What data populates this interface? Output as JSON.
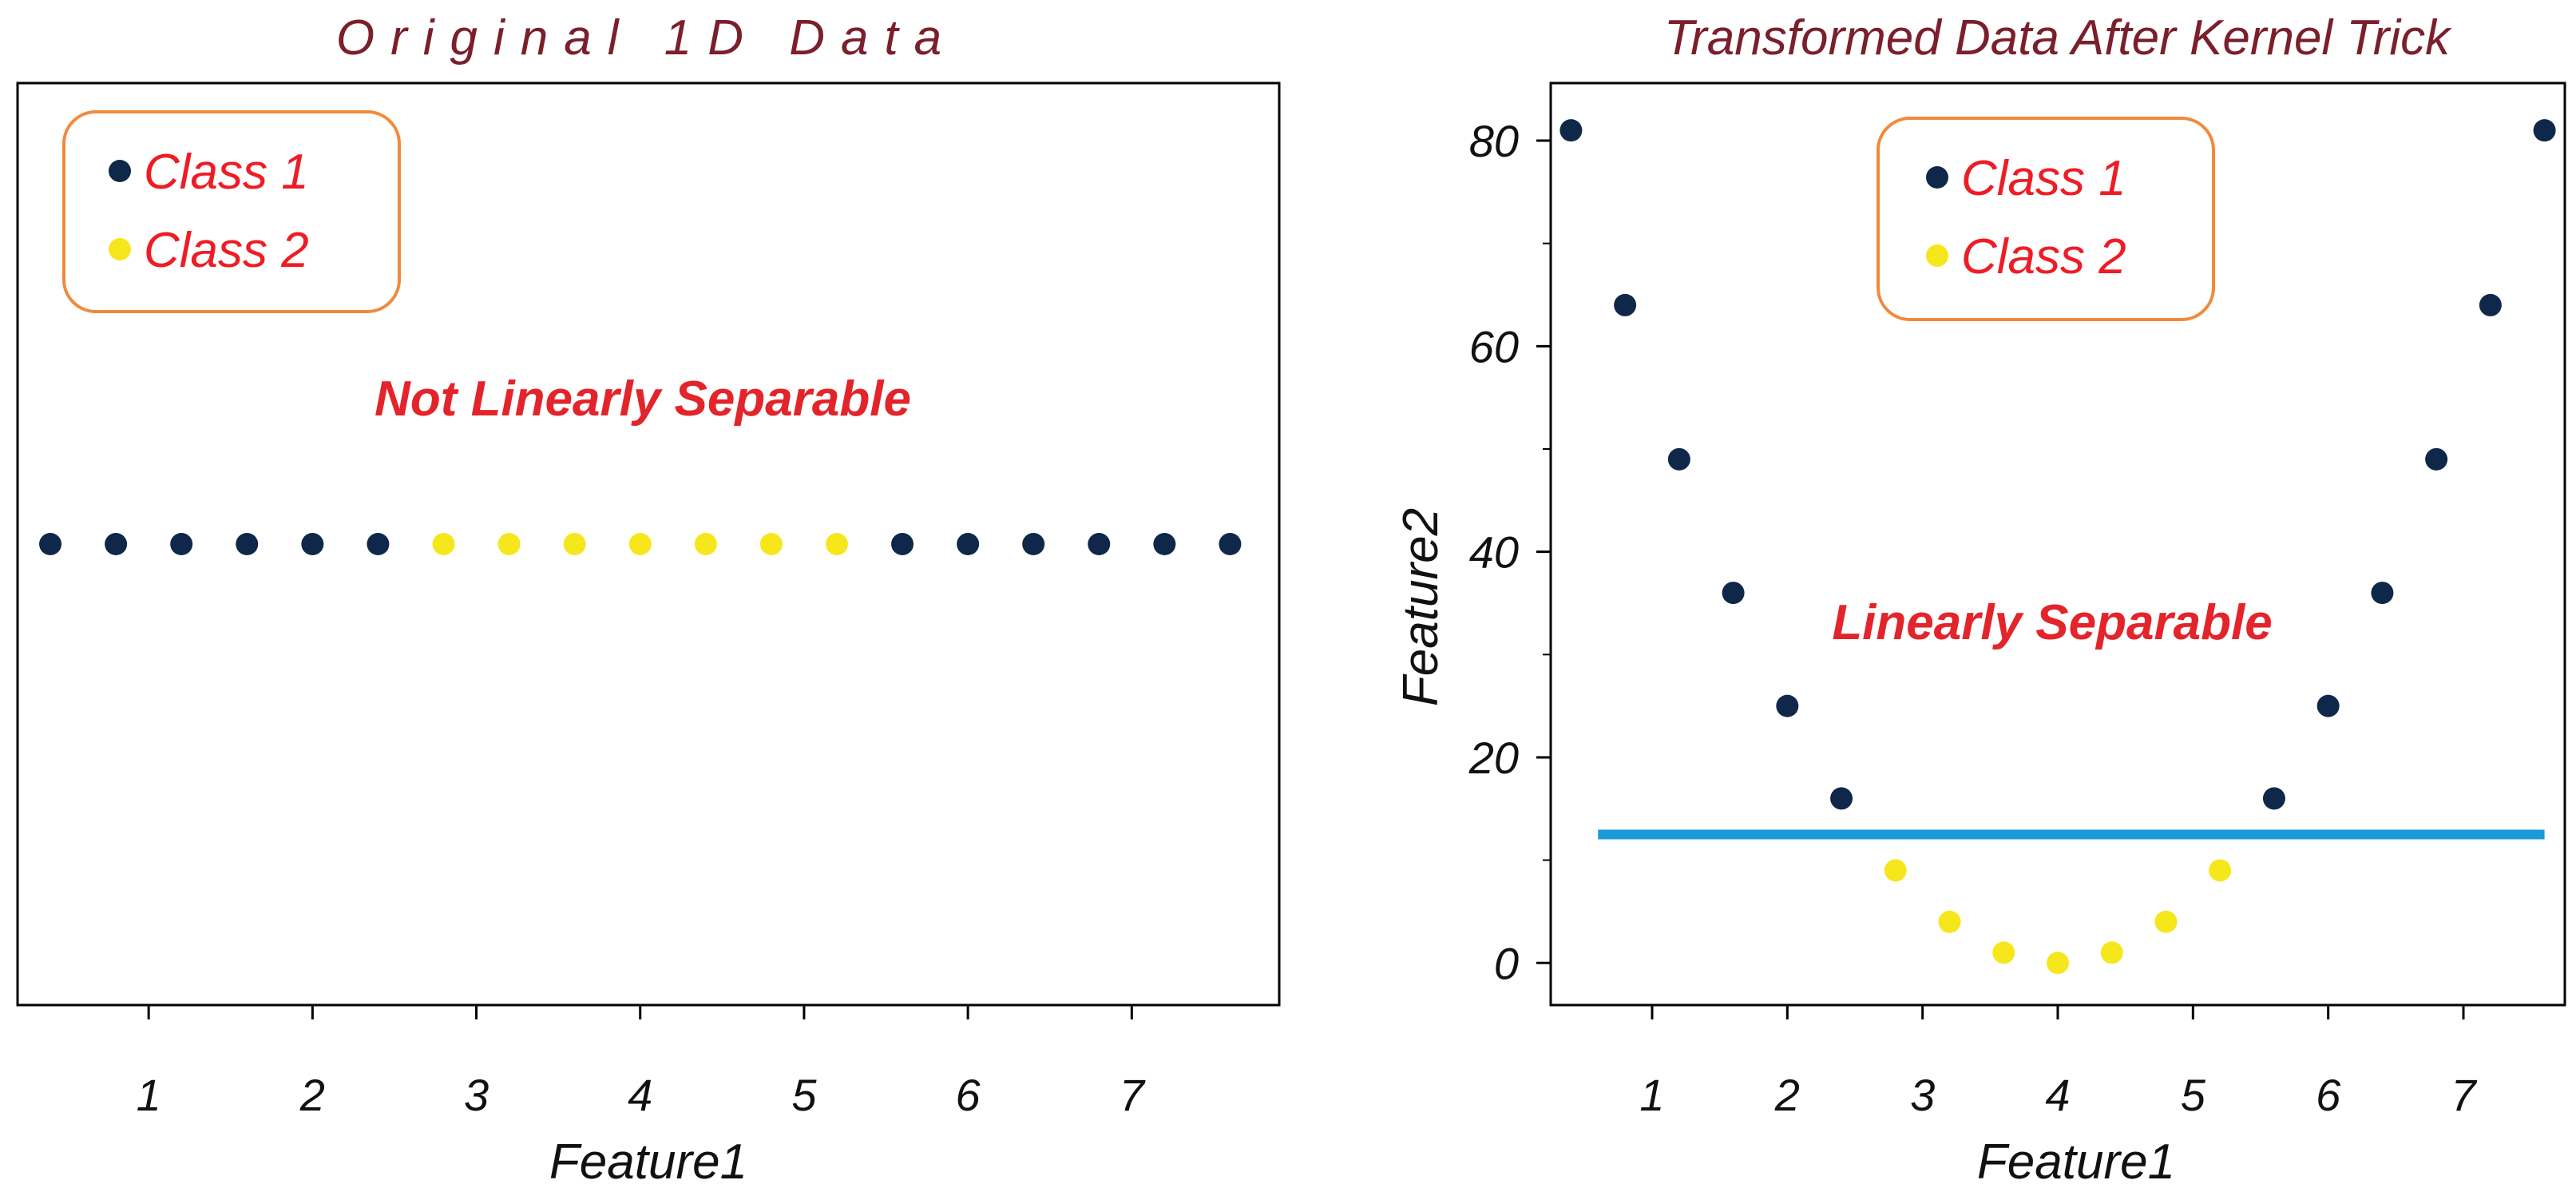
{
  "colors": {
    "class1": "#0f2749",
    "class2": "#f5e71c",
    "separator": "#1a9ad6",
    "legend_border": "#f08a3c",
    "legend_text": "#ee1c25",
    "annotation": "#e3242b",
    "title": "#7a1f2b"
  },
  "chart_data": [
    {
      "type": "scatter",
      "title": "Original 1D Data",
      "xlabel": "Feature1",
      "ylabel": "",
      "xlim": [
        0.2,
        7.9
      ],
      "ylim": [
        -1,
        1
      ],
      "xticks": [
        1,
        2,
        3,
        4,
        5,
        6,
        7
      ],
      "legend": [
        "Class 1",
        "Class 2"
      ],
      "legend_position": "top-left",
      "annotation": "Not Linearly Separable",
      "series": [
        {
          "name": "Class 1",
          "x": [
            0.4,
            0.8,
            1.2,
            1.6,
            2.0,
            2.4,
            5.6,
            6.0,
            6.4,
            6.8,
            7.2,
            7.6
          ],
          "y": [
            0,
            0,
            0,
            0,
            0,
            0,
            0,
            0,
            0,
            0,
            0,
            0
          ]
        },
        {
          "name": "Class 2",
          "x": [
            2.8,
            3.2,
            3.6,
            4.0,
            4.4,
            4.8,
            5.2
          ],
          "y": [
            0,
            0,
            0,
            0,
            0,
            0,
            0
          ]
        }
      ]
    },
    {
      "type": "scatter",
      "title": "Transformed Data After Kernel Trick",
      "xlabel": "Feature1",
      "ylabel": "Feature2",
      "xlim": [
        0.25,
        7.75
      ],
      "ylim": [
        -4.1,
        85.6
      ],
      "xticks": [
        1,
        2,
        3,
        4,
        5,
        6,
        7
      ],
      "yticks": [
        0,
        20,
        40,
        60,
        80
      ],
      "legend": [
        "Class 1",
        "Class 2"
      ],
      "legend_position": "top-center",
      "annotation": "Linearly Separable",
      "separator_line": {
        "x": [
          0.6,
          7.6
        ],
        "y": 12.5
      },
      "series": [
        {
          "name": "Class 1",
          "x": [
            0.4,
            0.8,
            1.2,
            1.6,
            2.0,
            2.4,
            5.6,
            6.0,
            6.4,
            6.8,
            7.2,
            7.6
          ],
          "y": [
            81,
            64,
            49,
            36,
            25,
            16,
            16,
            25,
            36,
            49,
            64,
            81
          ]
        },
        {
          "name": "Class 2",
          "x": [
            2.8,
            3.2,
            3.6,
            4.0,
            4.4,
            4.8,
            5.2
          ],
          "y": [
            9,
            4,
            1,
            0,
            1,
            4,
            9
          ]
        }
      ]
    }
  ]
}
